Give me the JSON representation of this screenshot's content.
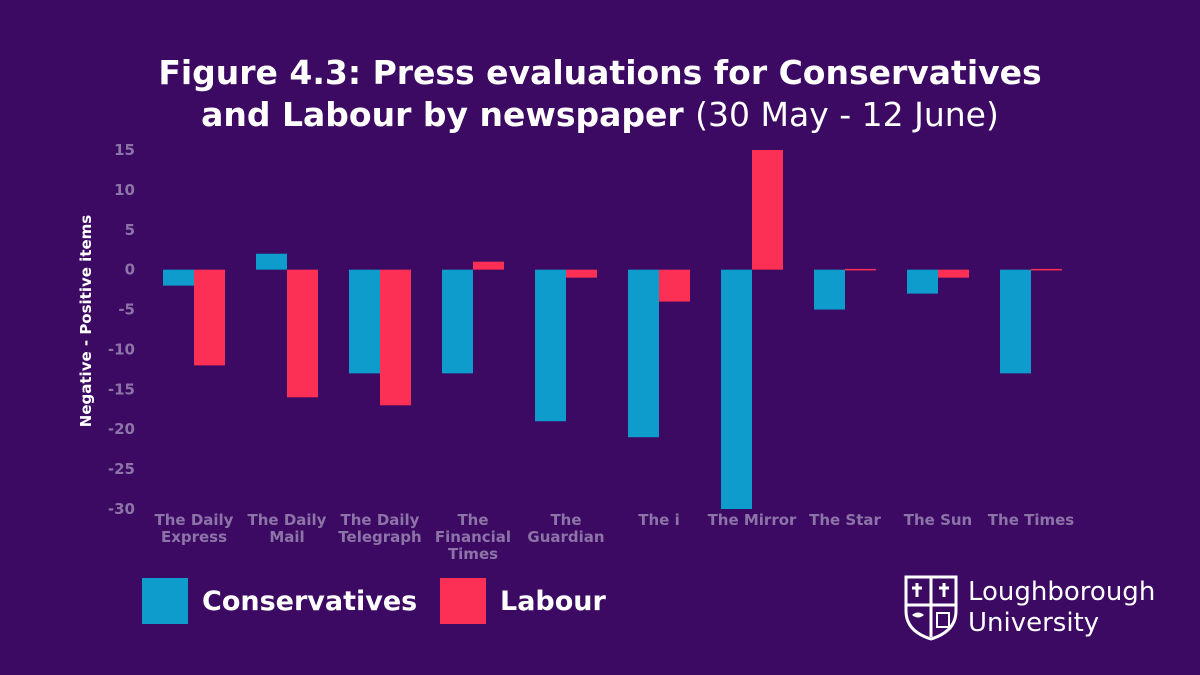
{
  "title": {
    "main_line1": "Figure 4.3: Press evaluations for Conservatives",
    "main_line2": "and Labour by newspaper",
    "subtitle": "(30 May - 12 June)"
  },
  "colors": {
    "background": "#3c0a63",
    "conservatives": "#0d9ccc",
    "labour": "#fc2f55"
  },
  "chart_data": {
    "type": "bar",
    "title": "Figure 4.3: Press evaluations for Conservatives and Labour by newspaper (30 May - 12 June)",
    "ylabel": "Negative - Positive items",
    "xlabel": "",
    "ylim": [
      -30,
      15
    ],
    "yticks": [
      15,
      10,
      5,
      0,
      -5,
      -10,
      -15,
      -20,
      -25,
      -30
    ],
    "grid": false,
    "legend_position": "bottom-left",
    "categories": [
      [
        "The Daily",
        "Express"
      ],
      [
        "The Daily",
        "Mail"
      ],
      [
        "The Daily",
        "Telegraph"
      ],
      [
        "The",
        "Financial",
        "Times"
      ],
      [
        "The",
        "Guardian"
      ],
      [
        "The i"
      ],
      [
        "The Mirror"
      ],
      [
        "The Star"
      ],
      [
        "The Sun"
      ],
      [
        "The Times"
      ]
    ],
    "series": [
      {
        "name": "Conservatives",
        "color": "#0d9ccc",
        "values": [
          -2,
          2,
          -13,
          -13,
          -19,
          -21,
          -30,
          -5,
          -3,
          -13
        ]
      },
      {
        "name": "Labour",
        "color": "#fc2f55",
        "values": [
          -12,
          -16,
          -17,
          1,
          -1,
          -4,
          15,
          0,
          -1,
          0
        ]
      }
    ]
  },
  "legend": [
    {
      "label": "Conservatives",
      "color": "#0d9ccc"
    },
    {
      "label": "Labour",
      "color": "#fc2f55"
    }
  ],
  "logo": {
    "line1": "Loughborough",
    "line2": "University",
    "icon": "university-crest-icon"
  }
}
